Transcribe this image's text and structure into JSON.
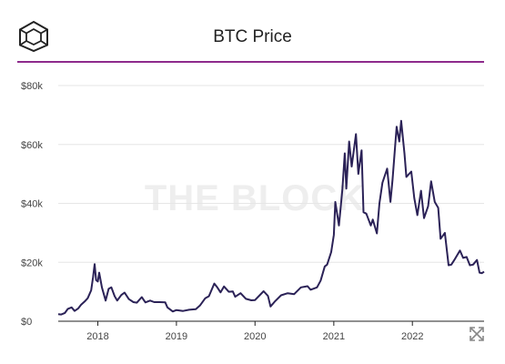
{
  "header": {
    "title": "BTC Price",
    "logo_icon": "cube-logo-icon"
  },
  "watermark": "THE BLOCK",
  "expand_icon": "expand-arrows-icon",
  "colors": {
    "line": "#2b2257",
    "rule": "#8e2a8c",
    "grid": "#e6e6e6",
    "axis": "#222222",
    "tick_text": "#444444"
  },
  "chart_data": {
    "type": "line",
    "title": "BTC Price",
    "xlabel": "",
    "ylabel": "",
    "x_ticks": [
      "2018",
      "2019",
      "2020",
      "2021",
      "2022"
    ],
    "y_ticks": [
      "$0",
      "$20k",
      "$40k",
      "$60k",
      "$80k"
    ],
    "ylim": [
      0,
      80000
    ],
    "xlim": [
      "2017-07-01",
      "2022-11-30"
    ],
    "grid": true,
    "legend": "none",
    "series": [
      {
        "values": [
          [
            "2017-07-01",
            2400
          ],
          [
            "2017-07-15",
            2300
          ],
          [
            "2017-08-01",
            2800
          ],
          [
            "2017-08-15",
            4200
          ],
          [
            "2017-09-01",
            4700
          ],
          [
            "2017-09-15",
            3500
          ],
          [
            "2017-10-01",
            4300
          ],
          [
            "2017-10-15",
            5600
          ],
          [
            "2017-11-01",
            6700
          ],
          [
            "2017-11-15",
            7800
          ],
          [
            "2017-12-01",
            10500
          ],
          [
            "2017-12-10",
            15000
          ],
          [
            "2017-12-17",
            19400
          ],
          [
            "2017-12-24",
            14000
          ],
          [
            "2018-01-01",
            13500
          ],
          [
            "2018-01-07",
            16500
          ],
          [
            "2018-01-20",
            11500
          ],
          [
            "2018-02-06",
            7000
          ],
          [
            "2018-02-20",
            11000
          ],
          [
            "2018-03-05",
            11500
          ],
          [
            "2018-03-20",
            8500
          ],
          [
            "2018-04-01",
            7000
          ],
          [
            "2018-04-20",
            8900
          ],
          [
            "2018-05-05",
            9700
          ],
          [
            "2018-05-25",
            7500
          ],
          [
            "2018-06-15",
            6500
          ],
          [
            "2018-07-01",
            6300
          ],
          [
            "2018-07-24",
            8200
          ],
          [
            "2018-08-10",
            6400
          ],
          [
            "2018-09-01",
            7000
          ],
          [
            "2018-09-20",
            6500
          ],
          [
            "2018-10-15",
            6500
          ],
          [
            "2018-11-10",
            6400
          ],
          [
            "2018-11-20",
            4700
          ],
          [
            "2018-12-15",
            3300
          ],
          [
            "2019-01-01",
            3800
          ],
          [
            "2019-02-01",
            3500
          ],
          [
            "2019-03-01",
            3900
          ],
          [
            "2019-04-01",
            4100
          ],
          [
            "2019-04-20",
            5300
          ],
          [
            "2019-05-15",
            7800
          ],
          [
            "2019-06-01",
            8500
          ],
          [
            "2019-06-26",
            12800
          ],
          [
            "2019-07-10",
            11500
          ],
          [
            "2019-07-25",
            9800
          ],
          [
            "2019-08-10",
            11800
          ],
          [
            "2019-09-01",
            10000
          ],
          [
            "2019-09-20",
            10100
          ],
          [
            "2019-10-01",
            8300
          ],
          [
            "2019-10-26",
            9500
          ],
          [
            "2019-11-20",
            7600
          ],
          [
            "2019-12-15",
            7100
          ],
          [
            "2020-01-01",
            7200
          ],
          [
            "2020-02-10",
            10200
          ],
          [
            "2020-03-01",
            8600
          ],
          [
            "2020-03-13",
            5000
          ],
          [
            "2020-04-01",
            6600
          ],
          [
            "2020-05-01",
            8800
          ],
          [
            "2020-06-01",
            9500
          ],
          [
            "2020-07-01",
            9200
          ],
          [
            "2020-08-01",
            11500
          ],
          [
            "2020-09-01",
            11900
          ],
          [
            "2020-09-15",
            10700
          ],
          [
            "2020-10-15",
            11500
          ],
          [
            "2020-11-01",
            13800
          ],
          [
            "2020-11-20",
            18600
          ],
          [
            "2020-12-01",
            19200
          ],
          [
            "2020-12-20",
            23500
          ],
          [
            "2021-01-01",
            29300
          ],
          [
            "2021-01-08",
            40500
          ],
          [
            "2021-01-25",
            32500
          ],
          [
            "2021-02-10",
            44800
          ],
          [
            "2021-02-21",
            57000
          ],
          [
            "2021-02-28",
            45000
          ],
          [
            "2021-03-13",
            61000
          ],
          [
            "2021-03-25",
            52500
          ],
          [
            "2021-04-14",
            63500
          ],
          [
            "2021-04-25",
            50000
          ],
          [
            "2021-05-10",
            58000
          ],
          [
            "2021-05-19",
            37000
          ],
          [
            "2021-06-01",
            36500
          ],
          [
            "2021-06-22",
            32500
          ],
          [
            "2021-07-01",
            34500
          ],
          [
            "2021-07-20",
            29800
          ],
          [
            "2021-08-01",
            40000
          ],
          [
            "2021-08-15",
            47000
          ],
          [
            "2021-09-06",
            51800
          ],
          [
            "2021-09-21",
            40500
          ],
          [
            "2021-10-01",
            48000
          ],
          [
            "2021-10-20",
            66000
          ],
          [
            "2021-11-01",
            61000
          ],
          [
            "2021-11-10",
            68000
          ],
          [
            "2021-11-25",
            57000
          ],
          [
            "2021-12-04",
            49000
          ],
          [
            "2021-12-27",
            50800
          ],
          [
            "2022-01-10",
            41800
          ],
          [
            "2022-01-24",
            36000
          ],
          [
            "2022-02-10",
            44300
          ],
          [
            "2022-02-24",
            35000
          ],
          [
            "2022-03-15",
            39000
          ],
          [
            "2022-03-29",
            47500
          ],
          [
            "2022-04-15",
            40500
          ],
          [
            "2022-05-01",
            38500
          ],
          [
            "2022-05-12",
            28000
          ],
          [
            "2022-06-01",
            30000
          ],
          [
            "2022-06-18",
            19000
          ],
          [
            "2022-07-01",
            19200
          ],
          [
            "2022-07-15",
            20800
          ],
          [
            "2022-08-10",
            24000
          ],
          [
            "2022-08-25",
            21500
          ],
          [
            "2022-09-10",
            21800
          ],
          [
            "2022-09-25",
            19000
          ],
          [
            "2022-10-10",
            19200
          ],
          [
            "2022-10-28",
            20800
          ],
          [
            "2022-11-09",
            16500
          ],
          [
            "2022-11-20",
            16300
          ],
          [
            "2022-11-30",
            16800
          ]
        ]
      }
    ]
  }
}
